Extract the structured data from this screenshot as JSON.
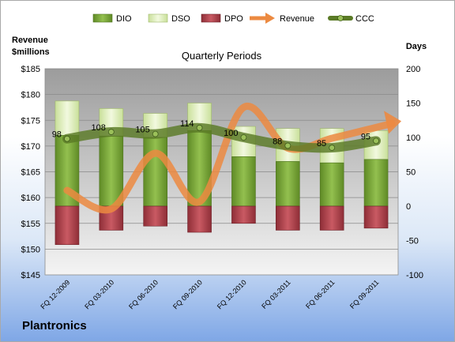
{
  "company": "Plantronics",
  "chart_data": {
    "type": "bar",
    "title": "Quarterly Periods",
    "left_axis_title": [
      "Revenue",
      "$millions"
    ],
    "right_axis_title": "Days",
    "categories": [
      "FQ 12-2009",
      "FQ 03-2010",
      "FQ 06-2010",
      "FQ 09-2010",
      "FQ 12-2010",
      "FQ 03-2011",
      "FQ 06-2011",
      "FQ 09-2011"
    ],
    "left_ylim": [
      145,
      185
    ],
    "left_ticks": [
      "$145",
      "$150",
      "$155",
      "$160",
      "$165",
      "$170",
      "$175",
      "$180",
      "$185"
    ],
    "left_tick_values": [
      145,
      150,
      155,
      160,
      165,
      170,
      175,
      180,
      185
    ],
    "right_ylim": [
      -100,
      200
    ],
    "right_ticks": [
      "-100",
      "-50",
      "0",
      "50",
      "100",
      "150",
      "200"
    ],
    "right_tick_values": [
      -100,
      -50,
      0,
      50,
      100,
      150,
      200
    ],
    "legend": [
      "DIO",
      "DSO",
      "DPO",
      "Revenue",
      "CCC"
    ],
    "legend_position": "top",
    "series": [
      {
        "name": "DIO",
        "axis": "right",
        "values": [
          103,
          102,
          100,
          110,
          72,
          65,
          63,
          68
        ]
      },
      {
        "name": "DSO",
        "axis": "right",
        "values": [
          50,
          40,
          35,
          40,
          44,
          48,
          50,
          42
        ]
      },
      {
        "name": "DPO",
        "axis": "right",
        "values": [
          -56,
          -35,
          -29,
          -38,
          -25,
          -35,
          -35,
          -32
        ]
      },
      {
        "name": "Revenue",
        "axis": "left",
        "values": [
          161.4,
          157.8,
          168.6,
          159.2,
          177.5,
          169.6,
          171.5,
          173.6
        ]
      },
      {
        "name": "CCC",
        "axis": "right",
        "values": [
          98,
          108,
          105,
          114,
          100,
          88,
          85,
          95
        ]
      }
    ],
    "ccc_labels": [
      "98",
      "108",
      "105",
      "114",
      "100",
      "88",
      "85",
      "95"
    ],
    "colors": {
      "DIO": "#7aa33a",
      "DSO": "#dceeb1",
      "DPO": "#b8454f",
      "Revenue": "#ec8a41",
      "CCC": "#5a7a26"
    },
    "grid": true
  }
}
